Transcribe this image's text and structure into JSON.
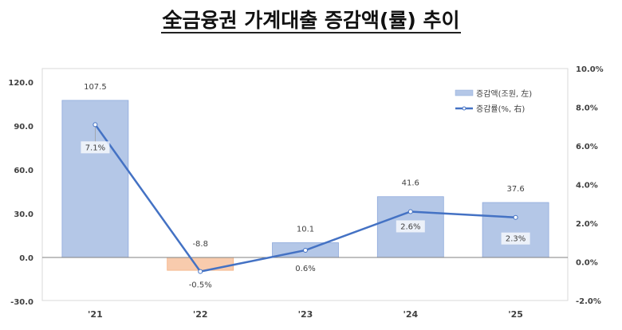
{
  "chart_data": {
    "type": "bar+line",
    "title": "全금융권 가계대출 증감액(률) 추이",
    "categories": [
      "'21",
      "'22",
      "'23",
      "'24",
      "'25"
    ],
    "series": [
      {
        "name": "증감액(조원, 左)",
        "type": "bar",
        "axis": "left",
        "values": [
          107.5,
          -8.8,
          10.1,
          41.6,
          37.6
        ],
        "labels": [
          "107.5",
          "-8.8",
          "10.1",
          "41.6",
          "37.6"
        ]
      },
      {
        "name": "증감률(%, 右)",
        "type": "line",
        "axis": "right",
        "values": [
          7.1,
          -0.5,
          0.6,
          2.6,
          2.3
        ],
        "labels": [
          "7.1%",
          "-0.5%",
          "0.6%",
          "2.6%",
          "2.3%"
        ]
      }
    ],
    "left_axis": {
      "ticks": [
        "120.0",
        "90.0",
        "60.0",
        "30.0",
        "0.0",
        "-30.0"
      ],
      "tick_values": [
        120,
        90,
        60,
        30,
        0,
        -30
      ]
    },
    "right_axis": {
      "ticks": [
        "10.0%",
        "8.0%",
        "6.0%",
        "4.0%",
        "2.0%",
        "0.0%",
        "-2.0%"
      ],
      "tick_values": [
        10,
        8,
        6,
        4,
        2,
        0,
        -2
      ],
      "ylim": [
        -2,
        10
      ]
    },
    "grid": false,
    "legend_position": "top-right",
    "colors": {
      "bar": "#B4C7E7",
      "bar_border": "#8FAADC",
      "bar_negative": "#F8CBAD",
      "line": "#4472C4"
    }
  }
}
